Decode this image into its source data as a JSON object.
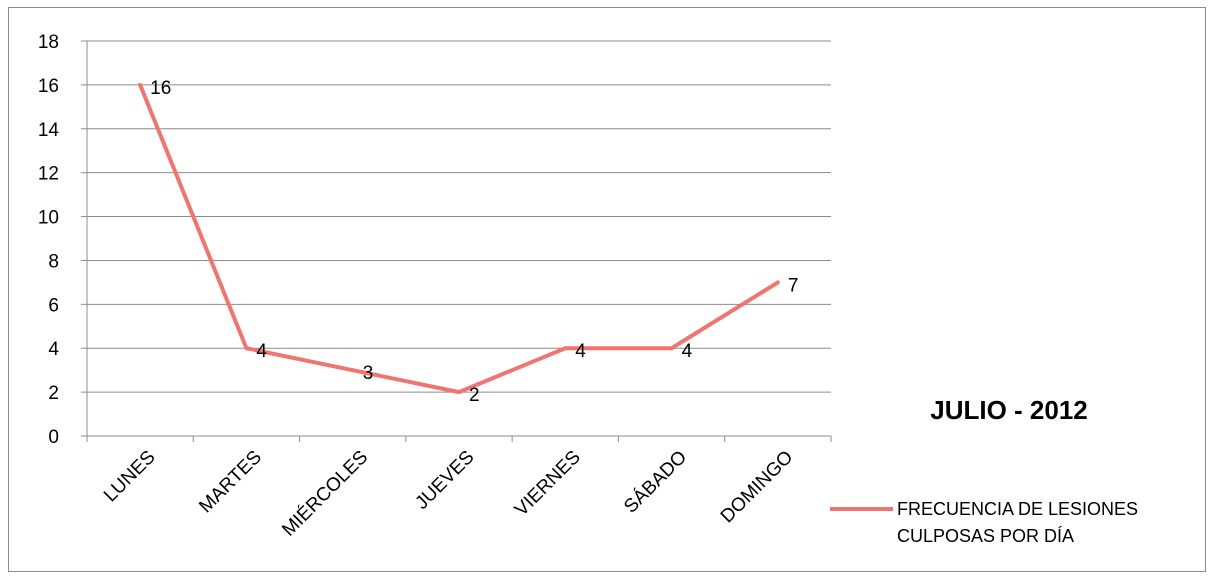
{
  "chart_data": {
    "type": "line",
    "title": "JULIO - 2012",
    "xlabel": "",
    "ylabel": "",
    "categories": [
      "LUNES",
      "MARTES",
      "MIÉRCOLES",
      "JUEVES",
      "VIERNES",
      "SÁBADO",
      "DOMINGO"
    ],
    "series": [
      {
        "name": "FRECUENCIA DE LESIONES CULPOSAS POR DÍA",
        "name_lines": [
          "FRECUENCIA DE LESIONES",
          "CULPOSAS POR DÍA"
        ],
        "values": [
          16,
          4,
          3,
          2,
          4,
          4,
          7
        ],
        "color": "#f07470"
      }
    ],
    "ylim": [
      0,
      18
    ],
    "yticks": [
      0,
      2,
      4,
      6,
      8,
      10,
      12,
      14,
      16,
      18
    ],
    "grid": true,
    "legend_position": "right",
    "data_labels": true
  }
}
